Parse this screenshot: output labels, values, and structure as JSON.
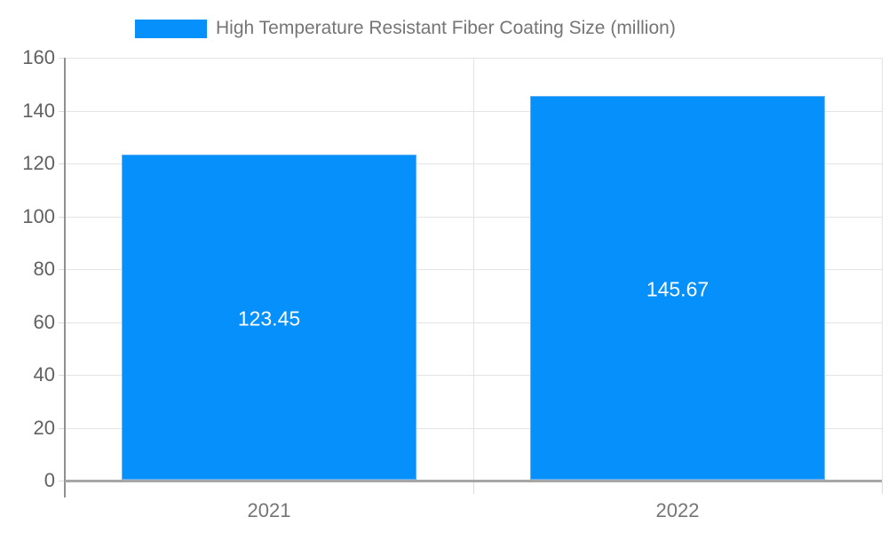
{
  "legend": {
    "label": "High Temperature Resistant Fiber Coating Size (million)"
  },
  "chart_data": {
    "type": "bar",
    "title": "",
    "xlabel": "",
    "ylabel": "",
    "categories": [
      "2021",
      "2022"
    ],
    "values": [
      123.45,
      145.67
    ],
    "value_labels": [
      "123.45",
      "145.67"
    ],
    "series_name": "High Temperature Resistant Fiber Coating Size (million)",
    "ylim": [
      0,
      160
    ],
    "ytick_step": 20,
    "ytick_labels": [
      "0",
      "20",
      "40",
      "60",
      "80",
      "100",
      "120",
      "140",
      "160"
    ],
    "grid": true,
    "legend_position": "top"
  },
  "colors": {
    "bar_fill": "#0590fb",
    "bar_edge": "#5fb2f8",
    "grid_line": "#e3e3e3",
    "y_axis_line": "#8f8f8f",
    "x_axis_line": "#a6a6a6",
    "minor_tick": "#dcdcdc",
    "y_tick_text": "#616161",
    "x_tick_text": "#757575",
    "legend_text": "#757575",
    "value_text": "#ffffff"
  }
}
